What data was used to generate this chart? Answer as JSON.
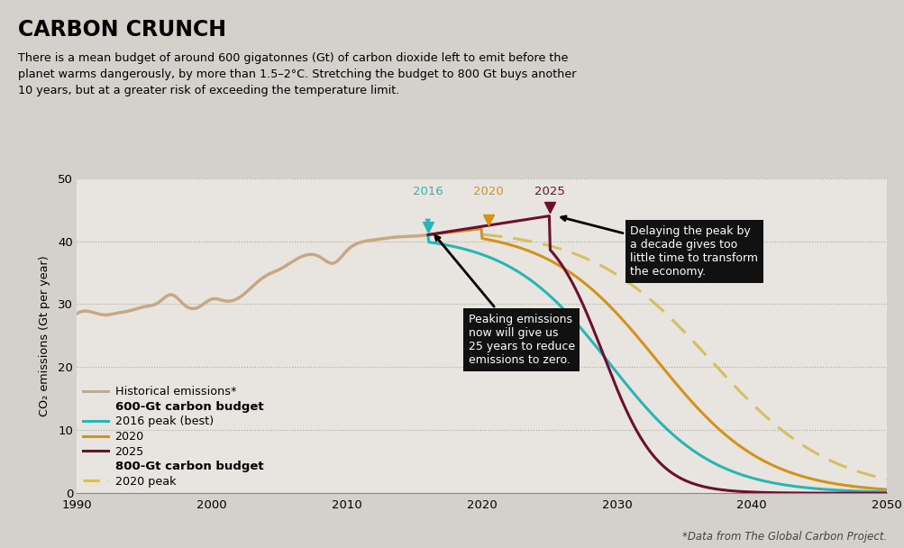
{
  "title": "CARBON CRUNCH",
  "subtitle": "There is a mean budget of around 600 gigatonnes (Gt) of carbon dioxide left to emit before the\nplanet warms dangerously, by more than 1.5–2°C. Stretching the budget to 800 Gt buys another\n10 years, but at a greater risk of exceeding the temperature limit.",
  "ylabel": "CO₂ emissions (Gt per year)",
  "xlim": [
    1990,
    2050
  ],
  "ylim": [
    0,
    50
  ],
  "yticks": [
    0,
    10,
    20,
    30,
    40,
    50
  ],
  "xticks": [
    1990,
    2000,
    2010,
    2020,
    2030,
    2040,
    2050
  ],
  "background_color": "#d4d0cb",
  "plot_background_color": "#e8e5e0",
  "footnote": "*Data from The Global Carbon Project.",
  "historical_color": "#c8a882",
  "peak2016_color": "#2ab5b5",
  "peak2020_color": "#d4921a",
  "peak2025_color": "#6b1030",
  "peak2020_800_color": "#d4c060",
  "ann_box_color": "#111111",
  "ann_text_color": "#ffffff"
}
